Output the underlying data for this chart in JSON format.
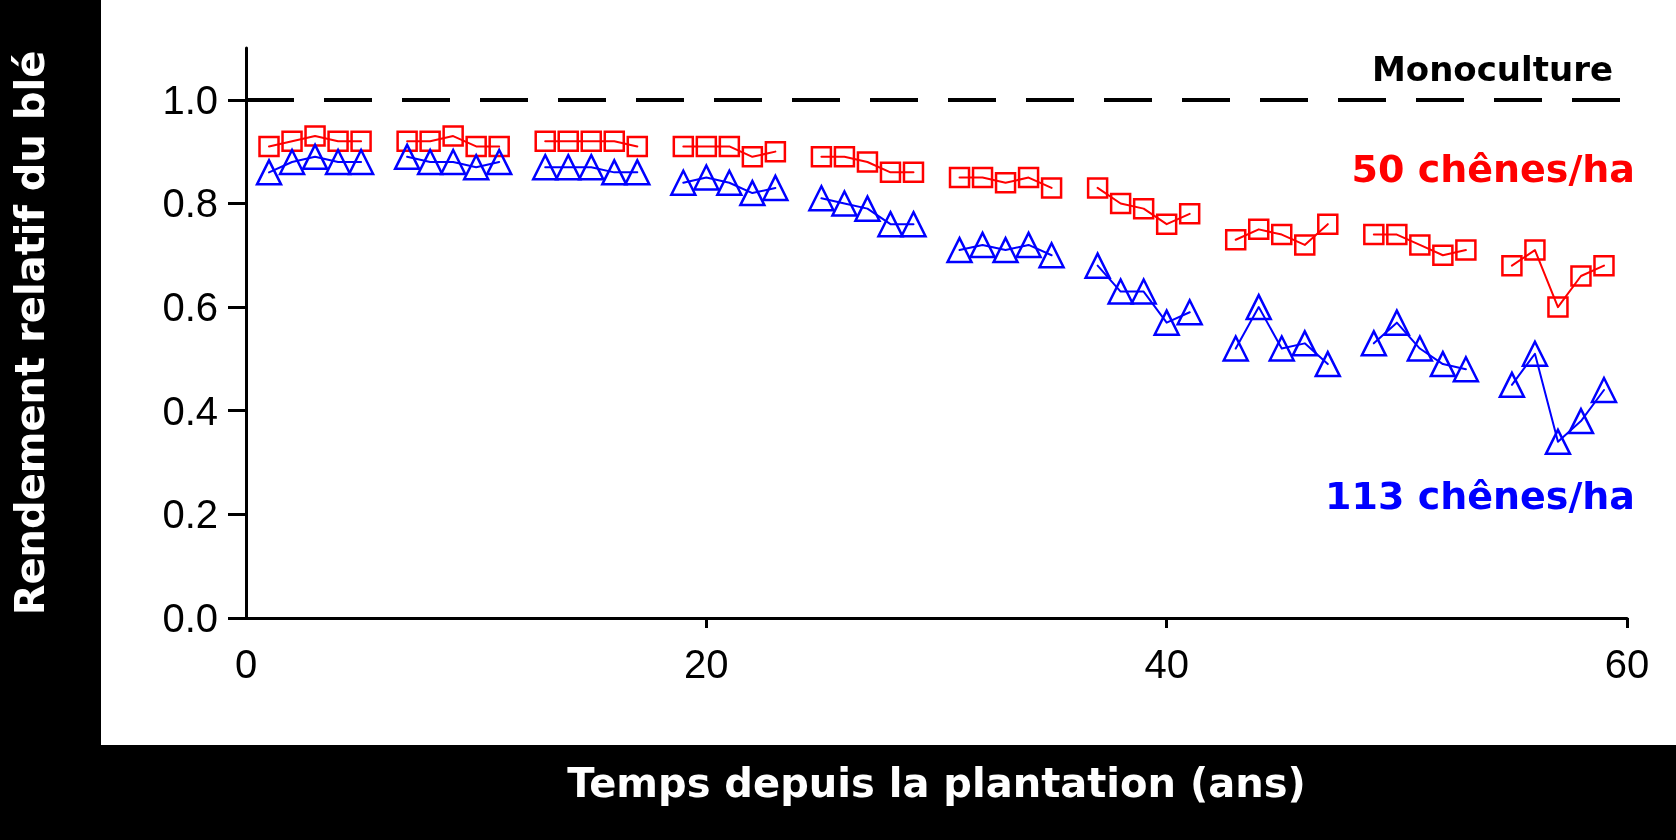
{
  "chart_data": {
    "type": "line",
    "xlabel": "Temps depuis la plantation (ans)",
    "ylabel": "Rendement relatif du blé",
    "x": [
      1,
      2,
      3,
      4,
      5,
      6,
      7,
      8,
      9,
      10,
      11,
      12,
      13,
      14,
      15,
      16,
      17,
      18,
      19,
      20,
      21,
      22,
      23,
      24,
      25,
      26,
      27,
      28,
      29,
      30,
      31,
      32,
      33,
      34,
      35,
      36,
      37,
      38,
      39,
      40,
      41,
      42,
      43,
      44,
      45,
      46,
      47,
      48,
      49,
      50,
      51,
      52,
      53,
      54,
      55,
      56,
      57,
      58,
      59
    ],
    "series": [
      {
        "name": "50 chênes/ha",
        "color": "#ff0000",
        "marker": "square",
        "values": [
          0.91,
          0.92,
          0.93,
          0.92,
          0.92,
          null,
          0.92,
          0.92,
          0.93,
          0.91,
          0.91,
          null,
          0.92,
          0.92,
          0.92,
          0.92,
          0.91,
          null,
          0.91,
          0.91,
          0.91,
          0.89,
          0.9,
          null,
          0.89,
          0.89,
          0.88,
          0.86,
          0.86,
          null,
          0.85,
          0.85,
          0.84,
          0.85,
          0.83,
          null,
          0.83,
          0.8,
          0.79,
          0.76,
          0.78,
          null,
          0.73,
          0.75,
          0.74,
          0.72,
          0.76,
          null,
          0.74,
          0.74,
          0.72,
          0.7,
          0.71,
          null,
          0.68,
          0.71,
          0.6,
          0.66,
          0.68
        ]
      },
      {
        "name": "113 chênes/ha",
        "color": "#0000ff",
        "marker": "triangle",
        "values": [
          0.86,
          0.88,
          0.89,
          0.88,
          0.88,
          null,
          0.89,
          0.88,
          0.88,
          0.87,
          0.88,
          null,
          0.87,
          0.87,
          0.87,
          0.86,
          0.86,
          null,
          0.84,
          0.85,
          0.84,
          0.82,
          0.83,
          null,
          0.81,
          0.8,
          0.79,
          0.76,
          0.76,
          null,
          0.71,
          0.72,
          0.71,
          0.72,
          0.7,
          null,
          0.68,
          0.63,
          0.63,
          0.57,
          0.59,
          null,
          0.52,
          0.6,
          0.52,
          0.53,
          0.49,
          null,
          0.53,
          0.57,
          0.52,
          0.49,
          0.48,
          null,
          0.45,
          0.51,
          0.34,
          0.38,
          0.44
        ]
      }
    ],
    "xlim": [
      0,
      60
    ],
    "xticks": [
      0,
      20,
      40,
      60
    ],
    "ylim": [
      0,
      1.1
    ],
    "yticks": [
      {
        "value": 0,
        "label": "0.0"
      },
      {
        "value": 0.2,
        "label": "0.2"
      },
      {
        "value": 0.4,
        "label": "0.4"
      },
      {
        "value": 0.6,
        "label": "0.6"
      },
      {
        "value": 0.8,
        "label": "0.8"
      },
      {
        "value": 1,
        "label": "1.0"
      }
    ],
    "ref_lines": [
      {
        "axis": "y",
        "value": 1,
        "label": "Monoculture",
        "color": "#000000",
        "line_style": "dashed"
      }
    ],
    "grid": false,
    "legend": "right"
  }
}
